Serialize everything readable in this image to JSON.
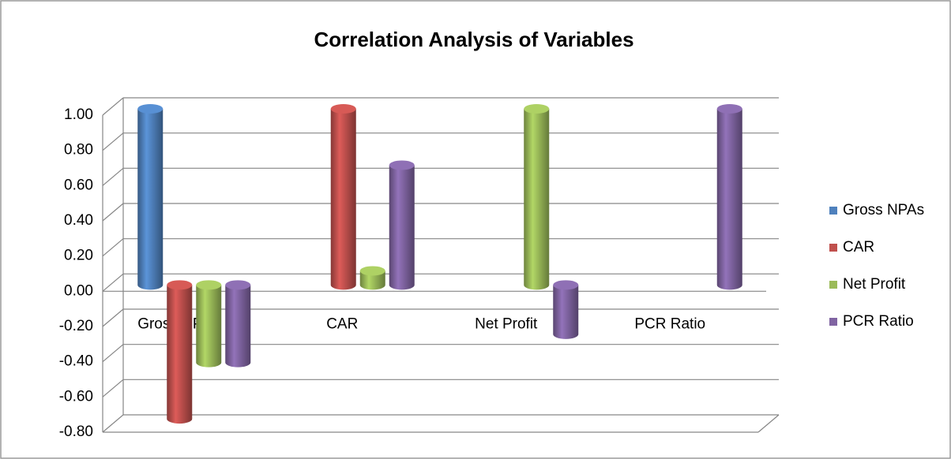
{
  "chart_data": {
    "type": "bar3d",
    "title": "Correlation Analysis of Variables",
    "categories": [
      "Gross NPAs",
      "CAR",
      "Net Profit",
      "PCR Ratio"
    ],
    "series": [
      {
        "name": "Gross NPAs",
        "color": "#4f81bd",
        "values": [
          1.0,
          null,
          null,
          null
        ]
      },
      {
        "name": "CAR",
        "color": "#c0504d",
        "values": [
          -0.76,
          1.0,
          null,
          null
        ]
      },
      {
        "name": "Net Profit",
        "color": "#9bbb59",
        "values": [
          -0.44,
          0.08,
          1.0,
          null
        ]
      },
      {
        "name": "PCR Ratio",
        "color": "#8064a2",
        "values": [
          -0.44,
          0.68,
          -0.28,
          1.0
        ]
      }
    ],
    "ylim": [
      -0.8,
      1.0
    ],
    "yticks": [
      {
        "value": 1.0,
        "label": "1.00"
      },
      {
        "value": 0.8,
        "label": "0.80"
      },
      {
        "value": 0.6,
        "label": "0.60"
      },
      {
        "value": 0.4,
        "label": "0.40"
      },
      {
        "value": 0.2,
        "label": "0.20"
      },
      {
        "value": 0,
        "label": "0.00"
      },
      {
        "value": -0.2,
        "label": "-0.20"
      },
      {
        "value": -0.4,
        "label": "-0.40"
      },
      {
        "value": -0.6,
        "label": "-0.60"
      },
      {
        "value": -0.8,
        "label": "-0.80"
      }
    ],
    "grid": true,
    "legend": "right"
  }
}
